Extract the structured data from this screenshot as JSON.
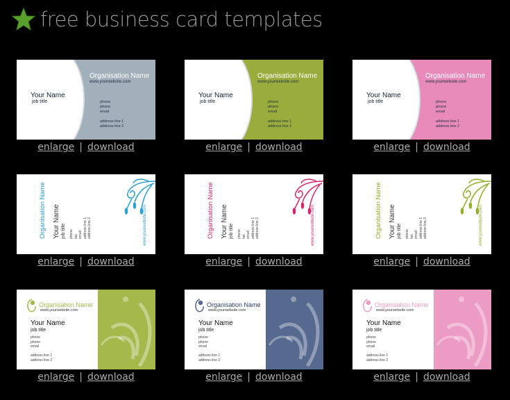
{
  "header": {
    "title": "free business card templates",
    "icon": "star-icon",
    "icon_color": "#5aa02c"
  },
  "links": {
    "enlarge": "enlarge",
    "separator": "|",
    "download": "download"
  },
  "cards": [
    {
      "style": "curve",
      "color": "#a2b0bb",
      "org": "Organisation Name",
      "web": "www.yourwebsite.com",
      "name": "Your Name",
      "job": "job title",
      "details": [
        "phone",
        "phone",
        "email",
        "",
        "address line 1",
        "address line 2"
      ]
    },
    {
      "style": "curve",
      "color": "#9aac3b",
      "org": "Organisation Name",
      "web": "www.yourwebsite.com",
      "name": "Your Name",
      "job": "job title",
      "details": [
        "phone",
        "phone",
        "email",
        "",
        "address line 1",
        "address line 2"
      ]
    },
    {
      "style": "curve",
      "color": "#e98bba",
      "org": "Organisation Name",
      "web": "www.yourwebsite.com",
      "name": "Your Name",
      "job": "job title",
      "details": [
        "phone",
        "phone",
        "email",
        "",
        "address line 1",
        "address line 2"
      ]
    },
    {
      "style": "vertical",
      "color": "#2a9fd0",
      "org": "Organisation Name",
      "web": "www.yourwebsite.com",
      "name": "Your Name",
      "job": "job title",
      "details": [
        "phone",
        "fax",
        "email",
        "address line 1",
        "address line 2"
      ]
    },
    {
      "style": "vertical",
      "color": "#d6266a",
      "org": "Organisation Name",
      "web": "www.yourwebsite.com",
      "name": "Your Name",
      "job": "job title",
      "details": [
        "phone",
        "fax",
        "email",
        "address line 1",
        "address line 2"
      ]
    },
    {
      "style": "vertical",
      "color": "#8fae2a",
      "org": "Organisation Name",
      "web": "www.yourwebsite.com",
      "name": "Your Name",
      "job": "job title",
      "details": [
        "phone",
        "fax",
        "email",
        "address line 1",
        "address line 2"
      ]
    },
    {
      "style": "panel",
      "color": "#a4b84c",
      "org": "Organisation Name",
      "web": "www.yourwebsite.com",
      "name": "Your Name",
      "job": "job title",
      "details": [
        "phone",
        "phone",
        "email",
        "",
        "address line 1",
        "address line 2"
      ]
    },
    {
      "style": "panel",
      "color": "#56698f",
      "org": "Organisation Name",
      "web": "www.yourwebsite.com",
      "name": "Your Name",
      "job": "job title",
      "details": [
        "phone",
        "phone",
        "email",
        "",
        "address line 1",
        "address line 2"
      ]
    },
    {
      "style": "panel",
      "color": "#ec9cc4",
      "org": "Organisation Name",
      "web": "www.yourwebsite.com",
      "name": "Your Name",
      "job": "job title",
      "details": [
        "phone",
        "phone",
        "email",
        "",
        "address line 1",
        "address line 2"
      ]
    }
  ]
}
